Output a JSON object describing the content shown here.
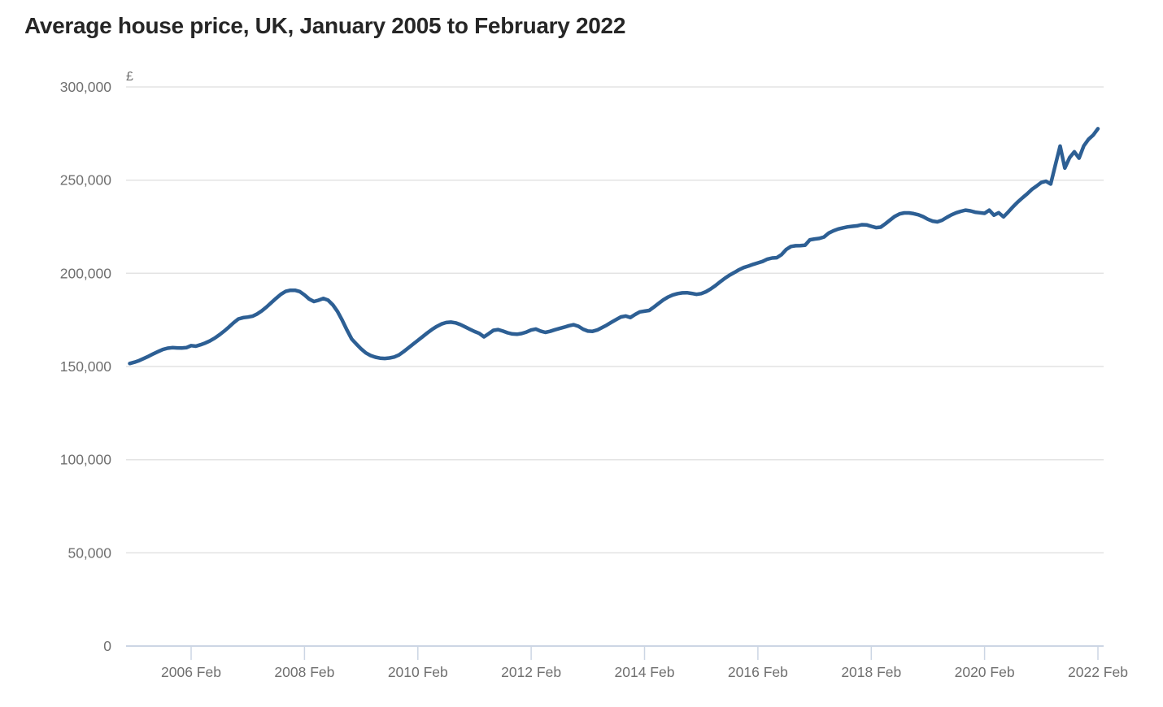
{
  "page": {
    "background_color": "#ffffff"
  },
  "chart_data": {
    "type": "line",
    "title": "Average house price, UK, January 2005 to February 2022",
    "unit_label": "£",
    "frequency": "monthly",
    "x_start": "2005 Jan",
    "x_end": "2022 Feb",
    "ylim": [
      0,
      300000
    ],
    "grid": "horizontal",
    "legend_position": "none",
    "grid_color": "#e3e3e3",
    "axis_color": "#ccd6e4",
    "label_color": "#6f6f6f",
    "title_color": "#262626",
    "y_ticks": [
      {
        "label": "300,000",
        "value": 300000
      },
      {
        "label": "250,000",
        "value": 250000
      },
      {
        "label": "200,000",
        "value": 200000
      },
      {
        "label": "150,000",
        "value": 150000
      },
      {
        "label": "100,000",
        "value": 100000
      },
      {
        "label": "50,000",
        "value": 50000
      },
      {
        "label": "0",
        "value": 0
      }
    ],
    "x_ticks": [
      {
        "label": "2006 Feb",
        "month": 13
      },
      {
        "label": "2008 Feb",
        "month": 37
      },
      {
        "label": "2010 Feb",
        "month": 61
      },
      {
        "label": "2012 Feb",
        "month": 85
      },
      {
        "label": "2014 Feb",
        "month": 109
      },
      {
        "label": "2016 Feb",
        "month": 133
      },
      {
        "label": "2018 Feb",
        "month": 157
      },
      {
        "label": "2020 Feb",
        "month": 181
      },
      {
        "label": "2022 Feb",
        "month": 205
      }
    ],
    "series": [
      {
        "name": "Average house price (£), monthly, Jan 2005 to Feb 2022",
        "color": "#2d5f94",
        "values": [
          151600,
          152300,
          153200,
          154300,
          155500,
          156800,
          158000,
          159100,
          159800,
          160100,
          160000,
          159900,
          160100,
          161200,
          160900,
          161700,
          162600,
          163800,
          165200,
          167000,
          169000,
          171200,
          173500,
          175500,
          176200,
          176500,
          177000,
          178200,
          179900,
          182000,
          184300,
          186600,
          188700,
          190300,
          190900,
          190900,
          190200,
          188400,
          186200,
          184900,
          185600,
          186500,
          185600,
          183100,
          179500,
          174800,
          169600,
          164800,
          162000,
          159400,
          157300,
          155900,
          155000,
          154500,
          154300,
          154600,
          155100,
          156200,
          158000,
          160000,
          162000,
          164000,
          166000,
          168000,
          169900,
          171500,
          172800,
          173600,
          173800,
          173400,
          172500,
          171300,
          170000,
          168800,
          167800,
          165900,
          167600,
          169400,
          169800,
          169000,
          168100,
          167500,
          167300,
          167700,
          168500,
          169600,
          170100,
          169000,
          168300,
          168900,
          169700,
          170400,
          171100,
          171900,
          172400,
          171600,
          170000,
          169000,
          168900,
          169600,
          170900,
          172200,
          173700,
          175200,
          176600,
          177100,
          176300,
          177900,
          179300,
          179700,
          180100,
          181900,
          183900,
          185800,
          187300,
          188400,
          189100,
          189500,
          189600,
          189200,
          188700,
          189100,
          190100,
          191600,
          193400,
          195400,
          197300,
          199000,
          200400,
          201900,
          203100,
          203900,
          204800,
          205600,
          206400,
          207600,
          208200,
          208400,
          210000,
          212800,
          214400,
          214800,
          214900,
          215100,
          218000,
          218400,
          218700,
          219500,
          221600,
          222800,
          223800,
          224400,
          224900,
          225200,
          225500,
          226100,
          226000,
          225200,
          224500,
          224800,
          226600,
          228600,
          230600,
          231900,
          232400,
          232400,
          232000,
          231400,
          230400,
          229000,
          228000,
          227600,
          228500,
          230000,
          231400,
          232500,
          233300,
          233900,
          233500,
          232800,
          232500,
          232200,
          233900,
          231200,
          232500,
          230300,
          232900,
          235700,
          238200,
          240500,
          242600,
          245000,
          246800,
          248700,
          249400,
          247900,
          258200,
          268300,
          256500,
          262100,
          265200,
          261800,
          268400,
          271900,
          274200,
          277600
        ]
      }
    ]
  }
}
